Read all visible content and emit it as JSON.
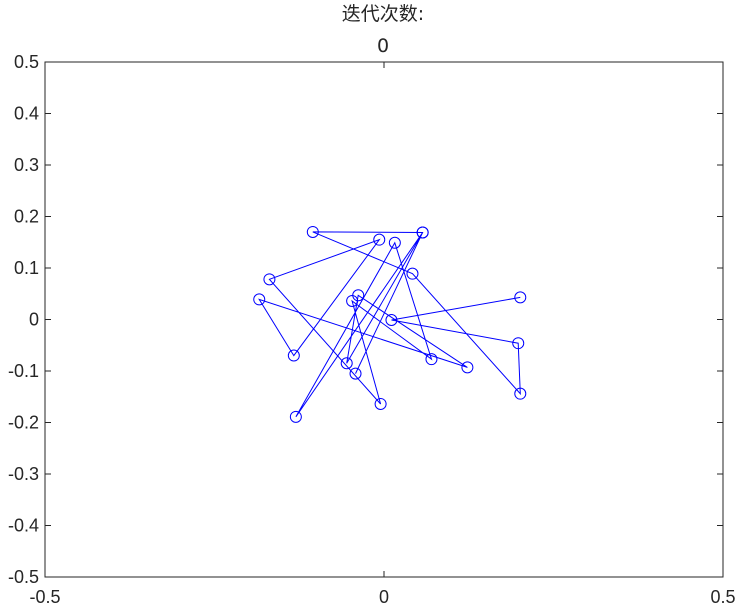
{
  "chart_data": {
    "type": "line",
    "title": "迭代次数:",
    "subtitle": "0",
    "xlabel": "",
    "ylabel": "",
    "xlim": [
      -0.5,
      0.5
    ],
    "ylim": [
      -0.5,
      0.5
    ],
    "x_ticks": [
      "-0.5",
      "0",
      "0.5"
    ],
    "y_ticks": [
      "-0.5",
      "-0.4",
      "-0.3",
      "-0.2",
      "-0.1",
      "0",
      "0.1",
      "0.2",
      "0.3",
      "0.4",
      "0.5"
    ],
    "grid": false,
    "marker": "circle",
    "line_color": "#0000ff",
    "axes_color": "#262626",
    "series": [
      {
        "points": [
          {
            "x": 0.201,
            "y": 0.043
          },
          {
            "x": 0.011,
            "y": -0.001
          },
          {
            "x": 0.198,
            "y": -0.046
          },
          {
            "x": 0.201,
            "y": -0.144
          },
          {
            "x": 0.042,
            "y": 0.089
          },
          {
            "x": -0.105,
            "y": 0.17
          },
          {
            "x": 0.057,
            "y": 0.169
          },
          {
            "x": -0.055,
            "y": -0.085
          },
          {
            "x": -0.038,
            "y": 0.047
          },
          {
            "x": 0.123,
            "y": -0.093
          },
          {
            "x": -0.184,
            "y": 0.039
          },
          {
            "x": -0.133,
            "y": -0.07
          },
          {
            "x": -0.007,
            "y": 0.155
          },
          {
            "x": -0.169,
            "y": 0.078
          },
          {
            "x": -0.005,
            "y": -0.164
          },
          {
            "x": -0.047,
            "y": 0.036
          },
          {
            "x": 0.07,
            "y": -0.077
          },
          {
            "x": 0.016,
            "y": 0.149
          },
          {
            "x": -0.13,
            "y": -0.189
          },
          {
            "x": 0.057,
            "y": 0.169
          },
          {
            "x": -0.042,
            "y": -0.105
          }
        ]
      }
    ]
  }
}
